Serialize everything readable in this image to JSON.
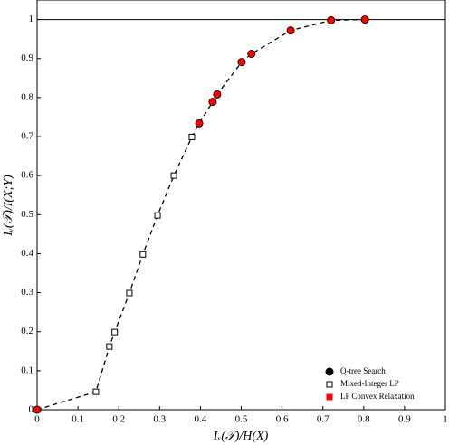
{
  "chart_data": {
    "type": "scatter",
    "xlabel": "Iₓ(𝒯)/H(X)",
    "ylabel": "Iᵥ(𝒯)/I(X;Y)",
    "xlim": [
      0,
      1
    ],
    "ylim": [
      0,
      1.05
    ],
    "xticks": [
      0,
      0.1,
      0.2,
      0.3,
      0.4,
      0.5,
      0.6,
      0.7,
      0.8,
      0.9,
      1
    ],
    "yticks": [
      0,
      0.1,
      0.2,
      0.3,
      0.4,
      0.5,
      0.6,
      0.7,
      0.8,
      0.9,
      1
    ],
    "hline": 1,
    "legend": "lower right",
    "series": [
      {
        "name": "Q-tree Search",
        "color": "#000000",
        "marker": "circle",
        "x": [
          0,
          0.397,
          0.43,
          0.441,
          0.501,
          0.525,
          0.621,
          0.72,
          0.803
        ],
        "values": [
          0,
          0.734,
          0.789,
          0.808,
          0.891,
          0.912,
          0.972,
          0.998,
          1.0
        ]
      },
      {
        "name": "Mixed-Integer LP",
        "color": "#000000",
        "marker": "open-square",
        "x": [
          0,
          0.144,
          0.177,
          0.19,
          0.226,
          0.259,
          0.295,
          0.335,
          0.379
        ],
        "values": [
          0,
          0.046,
          0.162,
          0.199,
          0.299,
          0.398,
          0.498,
          0.6,
          0.699
        ]
      },
      {
        "name": "LP Convex Relaxation",
        "color": "#ff0000",
        "marker": "square",
        "x": [
          0,
          0.397,
          0.43,
          0.441,
          0.501,
          0.525,
          0.621,
          0.72,
          0.803
        ],
        "values": [
          0,
          0.734,
          0.789,
          0.808,
          0.891,
          0.912,
          0.972,
          0.998,
          1.0
        ]
      }
    ]
  }
}
